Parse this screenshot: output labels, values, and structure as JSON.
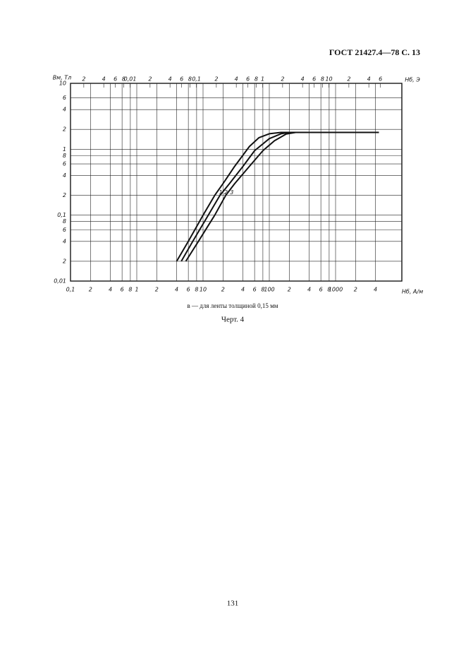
{
  "header": {
    "title": "ГОСТ 21427.4—78 С. 13"
  },
  "chart_data": {
    "type": "line",
    "ylabel": "Bм, Тл",
    "xlabel": "Нб, А/м",
    "x2label": "Нб, Э",
    "log_x": true,
    "log_y": true,
    "grid": true,
    "xlim": [
      0.1,
      10000
    ],
    "ylim": [
      0.01,
      10
    ],
    "x2lim": [
      0.00126,
      126
    ],
    "xticks": [
      {
        "value": 0.1,
        "label": "0,1"
      },
      {
        "value": 0.2,
        "label": "2"
      },
      {
        "value": 0.4,
        "label": "4"
      },
      {
        "value": 0.6,
        "label": "6"
      },
      {
        "value": 0.8,
        "label": "8"
      },
      1,
      {
        "value": 2,
        "label": "2"
      },
      {
        "value": 4,
        "label": "4"
      },
      {
        "value": 6,
        "label": "6"
      },
      {
        "value": 8,
        "label": "8"
      },
      10,
      {
        "value": 20,
        "label": "2"
      },
      {
        "value": 40,
        "label": "4"
      },
      {
        "value": 60,
        "label": "6"
      },
      {
        "value": 80,
        "label": "8"
      },
      100,
      {
        "value": 200,
        "label": "2"
      },
      {
        "value": 400,
        "label": "4"
      },
      {
        "value": 600,
        "label": "6"
      },
      {
        "value": 800,
        "label": "8"
      },
      1000,
      {
        "value": 2000,
        "label": "2"
      },
      {
        "value": 4000,
        "label": "4"
      }
    ],
    "x2ticks": [
      {
        "value": 0.002,
        "label": "2"
      },
      {
        "value": 0.004,
        "label": "4"
      },
      {
        "value": 0.006,
        "label": "6"
      },
      {
        "value": 0.008,
        "label": "8"
      },
      {
        "value": 0.01,
        "label": "0,01"
      },
      {
        "value": 0.02,
        "label": "2"
      },
      {
        "value": 0.04,
        "label": "4"
      },
      {
        "value": 0.06,
        "label": "6"
      },
      {
        "value": 0.08,
        "label": "8"
      },
      {
        "value": 0.1,
        "label": "0,1"
      },
      {
        "value": 0.2,
        "label": "2"
      },
      {
        "value": 0.4,
        "label": "4"
      },
      {
        "value": 0.6,
        "label": "6"
      },
      {
        "value": 0.8,
        "label": "8"
      },
      1,
      {
        "value": 2,
        "label": "2"
      },
      {
        "value": 4,
        "label": "4"
      },
      {
        "value": 6,
        "label": "6"
      },
      {
        "value": 8,
        "label": "8"
      },
      10,
      {
        "value": 20,
        "label": "2"
      },
      {
        "value": 40,
        "label": "4"
      },
      {
        "value": 60,
        "label": "6"
      }
    ],
    "yticks": [
      {
        "value": 0.01,
        "label": "0,01"
      },
      {
        "value": 0.02,
        "label": "2"
      },
      {
        "value": 0.04,
        "label": "4"
      },
      {
        "value": 0.06,
        "label": "6"
      },
      {
        "value": 0.08,
        "label": "8"
      },
      {
        "value": 0.1,
        "label": "0,1"
      },
      {
        "value": 0.2,
        "label": "2"
      },
      {
        "value": 0.4,
        "label": "4"
      },
      {
        "value": 0.6,
        "label": "6"
      },
      {
        "value": 0.8,
        "label": "8"
      },
      1,
      2,
      4,
      6,
      10
    ],
    "series": [
      {
        "name": "1",
        "color": "#111111",
        "x": [
          4,
          6,
          10,
          15,
          20,
          30,
          50,
          70,
          100,
          150,
          4500
        ],
        "values": [
          0.02,
          0.04,
          0.1,
          0.2,
          0.3,
          0.55,
          1.1,
          1.5,
          1.72,
          1.8,
          1.8
        ]
      },
      {
        "name": "2",
        "color": "#111111",
        "x": [
          4.7,
          7,
          12,
          18,
          25,
          40,
          60,
          100,
          150,
          200,
          4500
        ],
        "values": [
          0.02,
          0.04,
          0.1,
          0.2,
          0.3,
          0.55,
          0.95,
          1.45,
          1.72,
          1.8,
          1.8
        ]
      },
      {
        "name": "3",
        "color": "#111111",
        "x": [
          5.5,
          8.5,
          15,
          22,
          30,
          50,
          80,
          120,
          180,
          250,
          4500
        ],
        "values": [
          0.02,
          0.04,
          0.1,
          0.2,
          0.3,
          0.55,
          0.95,
          1.35,
          1.7,
          1.8,
          1.8
        ]
      }
    ]
  },
  "caption": {
    "note": "в — для ленты толщиной 0,15 мм",
    "figure": "Черт. 4"
  },
  "footer": {
    "page": "131"
  }
}
